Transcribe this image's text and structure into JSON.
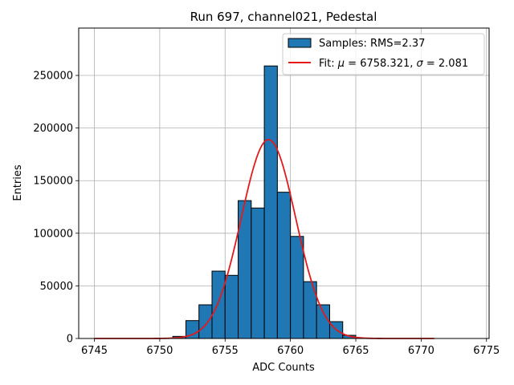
{
  "chart_data": {
    "type": "bar",
    "title": "Run 697, channel021, Pedestal",
    "xlabel": "ADC Counts",
    "ylabel": "Entries",
    "xlim": [
      6743.8,
      6775.2
    ],
    "ylim": [
      0,
      295000
    ],
    "xticks": [
      6745,
      6750,
      6755,
      6760,
      6765,
      6770,
      6775
    ],
    "yticks": [
      0,
      50000,
      100000,
      150000,
      200000,
      250000
    ],
    "grid": true,
    "legend_position": "top-right",
    "bin_width": 1,
    "bins": [
      {
        "x0": 6751,
        "count": 2000
      },
      {
        "x0": 6752,
        "count": 17000
      },
      {
        "x0": 6753,
        "count": 32000
      },
      {
        "x0": 6754,
        "count": 64000
      },
      {
        "x0": 6755,
        "count": 60000
      },
      {
        "x0": 6756,
        "count": 131000
      },
      {
        "x0": 6757,
        "count": 124000
      },
      {
        "x0": 6758,
        "count": 259000
      },
      {
        "x0": 6759,
        "count": 139000
      },
      {
        "x0": 6760,
        "count": 97000
      },
      {
        "x0": 6761,
        "count": 54000
      },
      {
        "x0": 6762,
        "count": 32000
      },
      {
        "x0": 6763,
        "count": 16000
      },
      {
        "x0": 6764,
        "count": 3000
      }
    ],
    "fit": {
      "mu": 6758.321,
      "sigma": 2.081,
      "amplitude": 189000,
      "x_range": [
        6745,
        6771
      ]
    },
    "series": [
      {
        "name": "Samples: RMS=2.37",
        "type": "histogram",
        "color": "#1f77b4"
      },
      {
        "name": "Fit: μ = 6758.321, σ = 2.081",
        "type": "line",
        "color": "#e31a1c"
      }
    ],
    "legend": {
      "samples_label": "Samples: RMS=2.37",
      "fit_prefix": "Fit: ",
      "fit_mu_symbol": "μ",
      "fit_mu_text": " = 6758.321, ",
      "fit_sigma_symbol": "σ",
      "fit_sigma_text": " = 2.081"
    }
  }
}
